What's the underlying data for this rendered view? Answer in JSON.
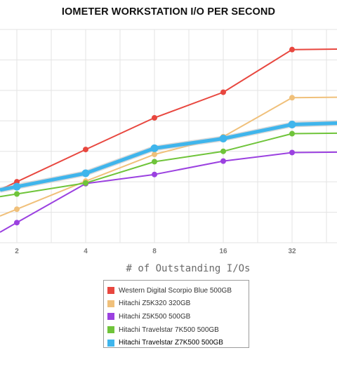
{
  "chart_data": {
    "type": "line",
    "title": "IOMETER WORKSTATION I/O PER SECOND",
    "xlabel": "# of Outstanding I/Os",
    "ylabel": "",
    "x_scale": "log2",
    "categories": [
      "2",
      "4",
      "8",
      "16",
      "32"
    ],
    "x": [
      2,
      4,
      8,
      16,
      32
    ],
    "grid": true,
    "legend_position": "bottom-center",
    "series": [
      {
        "name": "Western Digital Scorpio Blue 500GB",
        "color": "#e8473f",
        "values": [
          1,
          1.53,
          2.05,
          2.47,
          3.17
        ]
      },
      {
        "name": "Hitachi Z5K320 320GB",
        "color": "#f0c07a",
        "values": [
          0.55,
          1.01,
          1.45,
          1.74,
          2.38
        ]
      },
      {
        "name": "Hitachi Z5K500 500GB",
        "color": "#9b41e0",
        "values": [
          0.33,
          0.97,
          1.12,
          1.34,
          1.48
        ]
      },
      {
        "name": "Hitachi Travelstar 7K500 500GB",
        "color": "#6fc43a",
        "values": [
          0.8,
          0.98,
          1.33,
          1.5,
          1.79
        ]
      },
      {
        "name": "Hitachi Travelstar Z7K500 500GB",
        "color": "#3fb5ec",
        "values": [
          0.92,
          1.14,
          1.55,
          1.71,
          1.94
        ],
        "highlight": true
      }
    ]
  }
}
